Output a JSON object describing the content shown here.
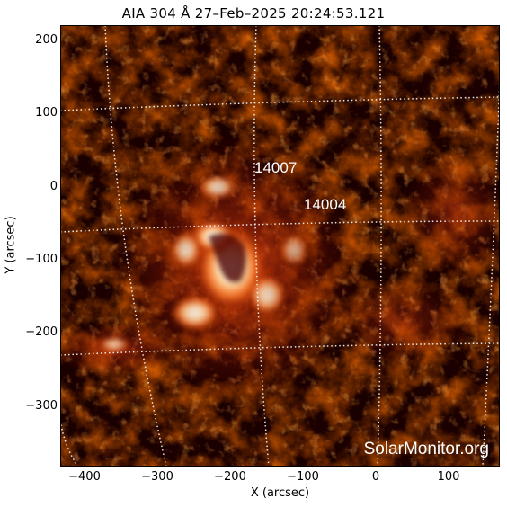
{
  "title": "AIA 304 Å 27–Feb–2025 20:24:53.121",
  "axes": {
    "xlabel": "X (arcsec)",
    "ylabel": "Y (arcsec)",
    "x_ticks": [
      "−400",
      "−300",
      "−200",
      "−100",
      "0",
      "100"
    ],
    "y_ticks": [
      "200",
      "100",
      "0",
      "−100",
      "−200",
      "−300"
    ]
  },
  "regions": [
    {
      "label": "14007"
    },
    {
      "label": "14004"
    }
  ],
  "watermark": "SolarMonitor.org",
  "colors": {
    "background": "#1a0000",
    "dark_red": "#5a0500",
    "red": "#b02000",
    "orange": "#f06010",
    "bright": "#ffd8a0",
    "white": "#ffffff"
  }
}
